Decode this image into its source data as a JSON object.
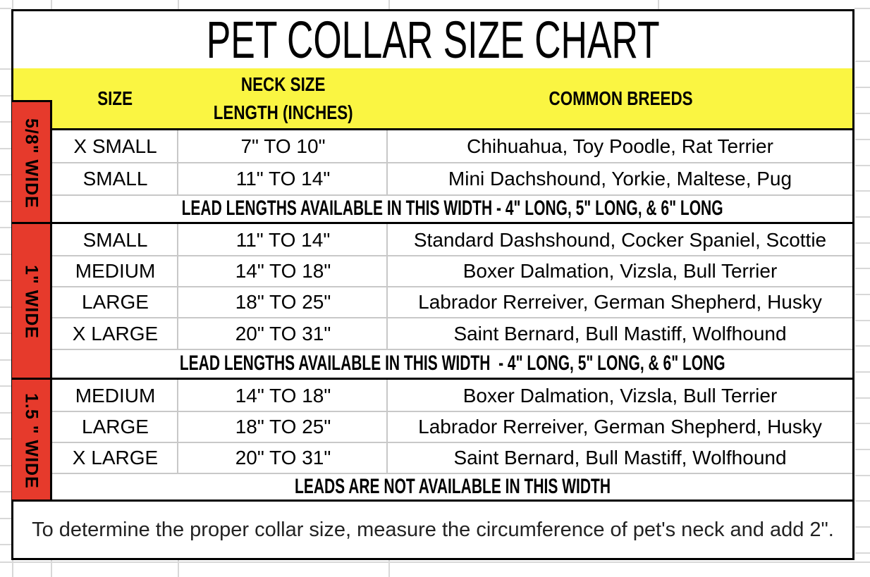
{
  "title": "PET COLLAR SIZE CHART",
  "header": {
    "size": "SIZE",
    "neck_size_line1": "NECK SIZE",
    "neck_size_line2": "LENGTH (INCHES)",
    "common_breeds": "COMMON BREEDS"
  },
  "sections": [
    {
      "width_label": "5/8\" WIDE",
      "rows": [
        {
          "size": "X SMALL",
          "neck": "7\" TO 10\"",
          "breeds": "Chihuahua, Toy Poodle, Rat Terrier"
        },
        {
          "size": "SMALL",
          "neck": "11\" TO 14\"",
          "breeds": "Mini Dachshound, Yorkie, Maltese, Pug"
        }
      ],
      "note": "LEAD LENGTHS AVAILABLE IN THIS WIDTH - 4\" LONG, 5\" LONG, & 6\" LONG"
    },
    {
      "width_label": "1\" WIDE",
      "rows": [
        {
          "size": "SMALL",
          "neck": "11\" TO 14\"",
          "breeds": "Standard Dashshound, Cocker Spaniel, Scottie"
        },
        {
          "size": "MEDIUM",
          "neck": "14\" TO 18\"",
          "breeds": "Boxer Dalmation, Vizsla, Bull Terrier"
        },
        {
          "size": "LARGE",
          "neck": "18\" TO 25\"",
          "breeds": "Labrador Rerreiver, German Shepherd, Husky"
        },
        {
          "size": "X LARGE",
          "neck": "20\" TO 31\"",
          "breeds": "Saint Bernard, Bull Mastiff, Wolfhound"
        }
      ],
      "note": "LEAD LENGTHS AVAILABLE IN THIS WIDTH  - 4\" LONG, 5\" LONG, & 6\" LONG"
    },
    {
      "width_label": "1.5 \" WIDE",
      "rows": [
        {
          "size": "MEDIUM",
          "neck": "14\" TO 18\"",
          "breeds": "Boxer Dalmation, Vizsla, Bull Terrier"
        },
        {
          "size": "LARGE",
          "neck": "18\" TO 25\"",
          "breeds": "Labrador Rerreiver, German Shepherd, Husky"
        },
        {
          "size": "X LARGE",
          "neck": "20\" TO 31\"",
          "breeds": "Saint Bernard, Bull Mastiff, Wolfhound"
        }
      ],
      "note": "LEADS ARE NOT AVAILABLE IN THIS WIDTH"
    }
  ],
  "footer_note": "To determine the proper collar size, measure the circumference of pet's neck and add 2\".",
  "colors": {
    "header_fill": "#FAF542",
    "width_band_fill": "#E63A2C",
    "grid_line": "#C8C8C8",
    "outer_grid_line": "#D8D8D8",
    "border": "#000000"
  }
}
